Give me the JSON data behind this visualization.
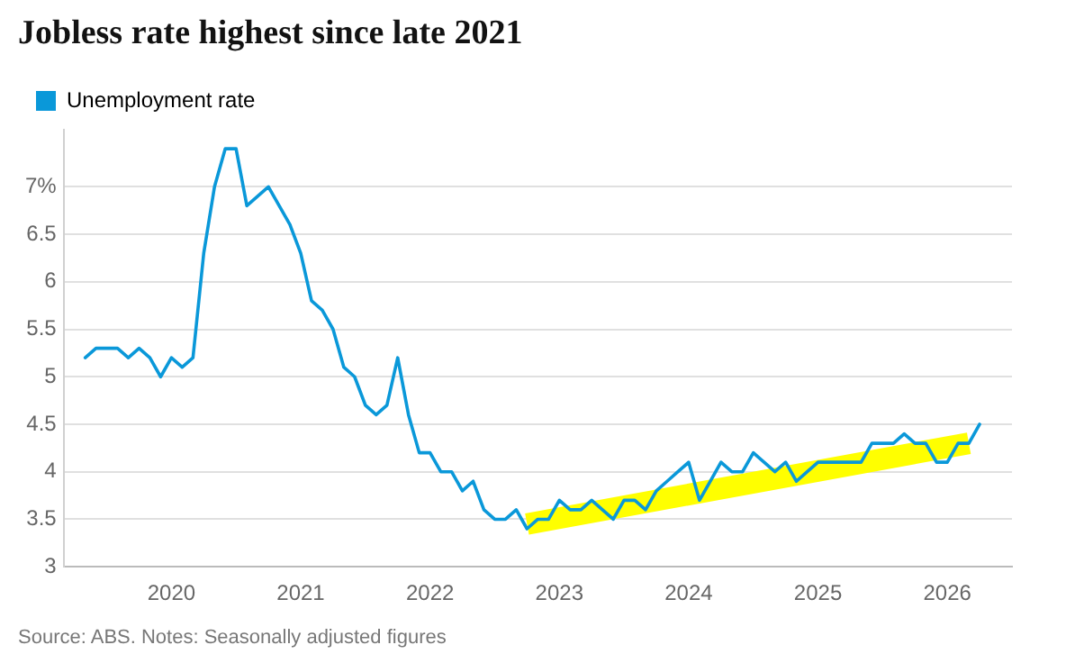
{
  "chart_data": {
    "type": "line",
    "title": "Jobless rate highest since late 2021",
    "annotations": [
      "Source: ABS. Notes: Seasonally adjusted figures"
    ],
    "x": [
      "2019-05",
      "2019-06",
      "2019-07",
      "2019-08",
      "2019-09",
      "2019-10",
      "2019-11",
      "2019-12",
      "2020-01",
      "2020-02",
      "2020-03",
      "2020-04",
      "2020-05",
      "2020-06",
      "2020-07",
      "2020-08",
      "2020-09",
      "2020-10",
      "2020-11",
      "2020-12",
      "2021-01",
      "2021-02",
      "2021-03",
      "2021-04",
      "2021-05",
      "2021-06",
      "2021-07",
      "2021-08",
      "2021-09",
      "2021-10",
      "2021-11",
      "2021-12",
      "2022-01",
      "2022-02",
      "2022-03",
      "2022-04",
      "2022-05",
      "2022-06",
      "2022-07",
      "2022-08",
      "2022-09",
      "2022-10",
      "2022-11",
      "2022-12",
      "2023-01",
      "2023-02",
      "2023-03",
      "2023-04",
      "2023-05",
      "2023-06",
      "2023-07",
      "2023-08",
      "2023-09",
      "2023-10",
      "2023-11",
      "2023-12",
      "2024-01",
      "2024-02",
      "2024-03",
      "2024-04",
      "2024-05",
      "2024-06",
      "2024-07",
      "2024-08",
      "2024-09",
      "2024-10",
      "2024-11",
      "2024-12",
      "2025-01",
      "2025-02",
      "2025-03",
      "2025-04",
      "2025-05",
      "2025-06",
      "2025-07",
      "2025-08",
      "2025-09",
      "2025-10",
      "2025-11",
      "2025-12",
      "2026-01",
      "2026-02",
      "2026-03",
      "2026-04"
    ],
    "series": [
      {
        "x": [
          "2022-10",
          "2026-03"
        ],
        "color": "#ffff00",
        "values": [
          3.45,
          4.3
        ]
      },
      {
        "name": "Unemployment rate",
        "color": "#0a98d9",
        "values": [
          5.2,
          5.3,
          5.3,
          5.3,
          5.2,
          5.3,
          5.2,
          5.0,
          5.2,
          5.1,
          5.2,
          6.3,
          7.0,
          7.4,
          7.4,
          6.8,
          6.9,
          7.0,
          6.8,
          6.6,
          6.3,
          5.8,
          5.7,
          5.5,
          5.1,
          5.0,
          4.7,
          4.6,
          4.7,
          5.2,
          4.6,
          4.2,
          4.2,
          4.0,
          4.0,
          3.8,
          3.9,
          3.6,
          3.5,
          3.5,
          3.6,
          3.4,
          3.5,
          3.5,
          3.7,
          3.6,
          3.6,
          3.7,
          3.6,
          3.5,
          3.7,
          3.7,
          3.6,
          3.8,
          3.9,
          4.0,
          4.1,
          3.7,
          3.9,
          4.1,
          4.0,
          4.0,
          4.2,
          4.1,
          4.0,
          4.1,
          3.9,
          4.0,
          4.1,
          4.1,
          4.1,
          4.1,
          4.1,
          4.3,
          4.3,
          4.3,
          4.4,
          4.3,
          4.3,
          4.1,
          4.1,
          4.3,
          4.3,
          4.5
        ]
      }
    ],
    "xlim": [
      "2019-03",
      "2026-07"
    ],
    "xticks": [
      "2020",
      "2021",
      "2022",
      "2023",
      "2024",
      "2025",
      "2026"
    ],
    "ylim": [
      3,
      7.6
    ],
    "yticks": [
      3,
      3.5,
      4,
      4.5,
      5,
      5.5,
      6,
      6.5,
      {
        "value": 7,
        "label": "7%"
      }
    ],
    "grid": "y",
    "legend": "top left",
    "marker": "none",
    "line_style": "solid"
  }
}
